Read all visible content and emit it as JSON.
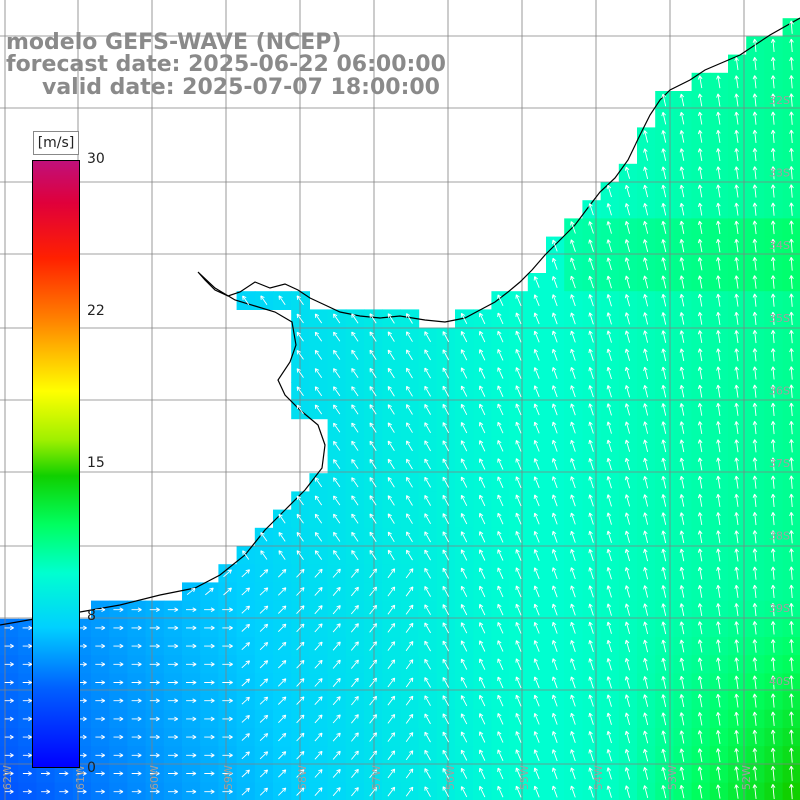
{
  "title": {
    "line1": "modelo GEFS-WAVE (NCEP)",
    "line2": "forecast date: 2025-06-22 06:00:00",
    "line3": "valid date: 2025-07-07 18:00:00"
  },
  "colorbar": {
    "unit": "[m/s]",
    "ticks": [
      "30",
      "22",
      "15",
      "8",
      "0"
    ],
    "tick_values": [
      30,
      22,
      15,
      8,
      0
    ],
    "range": [
      0,
      30
    ],
    "colors": [
      "#0000ff",
      "#00d0ff",
      "#00ff60",
      "#ffff00",
      "#ff2000",
      "#c0107a"
    ]
  },
  "map": {
    "land_color": "#ffffff",
    "grid_color": "#808080",
    "coast_color": "#000000",
    "arrow_color": "#ffffff",
    "latitude_labels": [
      "32S",
      "33S",
      "34S",
      "35S",
      "36S",
      "37S",
      "38S",
      "39S",
      "40S"
    ],
    "longitude_labels": [
      "62W",
      "61W",
      "60W",
      "59W",
      "58W",
      "57W",
      "56W",
      "55W",
      "54W",
      "53W",
      "52W"
    ]
  }
}
